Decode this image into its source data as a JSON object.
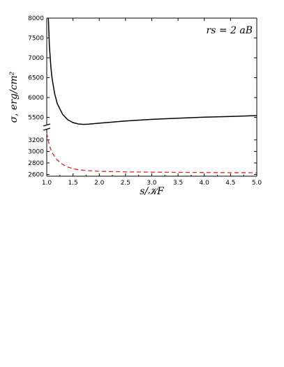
{
  "chart_data": {
    "type": "line",
    "xlabel": "s/𝒦F",
    "ylabel": "σ, erg/cm²",
    "annotation": "rs = 2 aB",
    "xlim": [
      1.0,
      5.0
    ],
    "xticks": [
      "1.0",
      "1.5",
      "2.0",
      "2.5",
      "3.0",
      "3.5",
      "4.0",
      "4.5",
      "5.0"
    ],
    "axis_break": true,
    "upper_panel": {
      "ylim": [
        5300,
        8000
      ],
      "yticks": [
        "5500",
        "6000",
        "6500",
        "7000",
        "7500",
        "8000"
      ]
    },
    "lower_panel": {
      "ylim": [
        2570,
        3380
      ],
      "yticks": [
        "2600",
        "2800",
        "3000",
        "3200"
      ]
    },
    "series": [
      {
        "panel": "upper",
        "color": "#000000",
        "style": "solid",
        "x": [
          1.03,
          1.05,
          1.08,
          1.1,
          1.15,
          1.2,
          1.3,
          1.4,
          1.5,
          1.6,
          1.7,
          1.8,
          2.0,
          2.5,
          3.0,
          3.5,
          4.0,
          4.5,
          5.0
        ],
        "y": [
          8000,
          7300,
          6750,
          6500,
          6100,
          5850,
          5580,
          5440,
          5370,
          5335,
          5325,
          5330,
          5355,
          5410,
          5450,
          5480,
          5505,
          5525,
          5545
        ]
      },
      {
        "panel": "lower",
        "color": "#e8202a",
        "style": "dashed",
        "x": [
          1.0,
          1.05,
          1.1,
          1.2,
          1.3,
          1.4,
          1.5,
          1.6,
          1.8,
          2.0,
          2.5,
          3.0,
          3.5,
          4.0,
          4.5,
          5.0
        ],
        "y": [
          3320,
          3100,
          2980,
          2850,
          2775,
          2728,
          2700,
          2683,
          2665,
          2655,
          2645,
          2640,
          2636,
          2634,
          2632,
          2630
        ]
      }
    ]
  }
}
